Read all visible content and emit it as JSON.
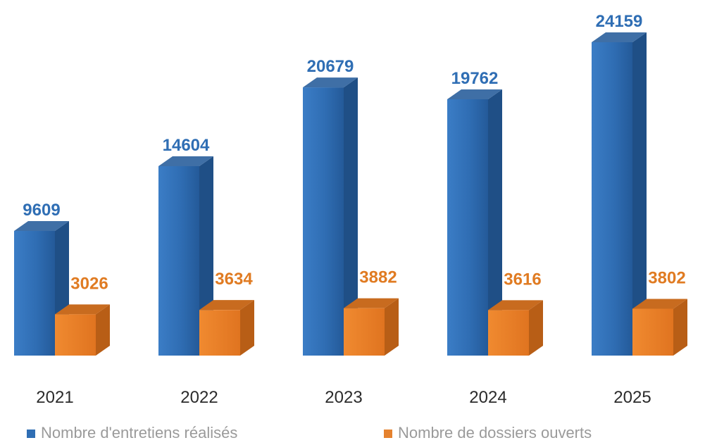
{
  "chart_data": {
    "type": "bar",
    "categories": [
      "2021",
      "2022",
      "2023",
      "2024",
      "2025"
    ],
    "series": [
      {
        "name": "Nombre d'entretiens réalisés",
        "values": [
          9609,
          14604,
          20679,
          19762,
          24159
        ],
        "color": "#2f6eb4"
      },
      {
        "name": "Nombre de dossiers ouverts",
        "values": [
          3026,
          3634,
          3882,
          3616,
          3802
        ],
        "color": "#e5822e"
      }
    ],
    "value_label_colors": [
      "#2f6eb4",
      "#e07b22"
    ],
    "title": "",
    "xlabel": "",
    "ylabel": "",
    "ylim": [
      0,
      25000
    ],
    "grid": false,
    "legend_position": "bottom",
    "style": "3d-column"
  }
}
